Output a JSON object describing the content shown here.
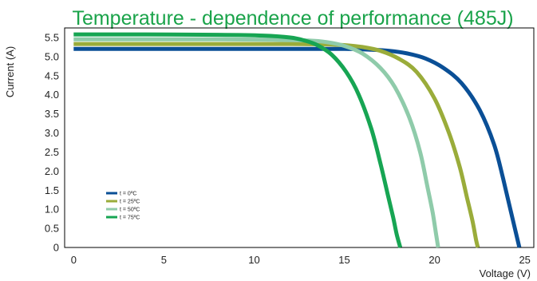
{
  "chart_data": {
    "type": "line",
    "title": "Temperature - dependence of performance (485J)",
    "xlabel": "Voltage (V)",
    "ylabel": "Current (A)",
    "xlim": [
      -0.5,
      25.5
    ],
    "ylim": [
      0,
      5.75
    ],
    "x_ticks": [
      0,
      5,
      10,
      15,
      20,
      25
    ],
    "x_tick_labels": [
      "0",
      "5",
      "10",
      "15",
      "20",
      "25"
    ],
    "y_ticks": [
      0,
      0.5,
      1.0,
      1.5,
      2.0,
      2.5,
      3.0,
      3.5,
      4.0,
      4.5,
      5.0,
      5.5
    ],
    "y_tick_labels": [
      "0",
      "0.5",
      "1.0",
      "1.5",
      "2.0",
      "2.5",
      "3.0",
      "3.5",
      "4.0",
      "4.5",
      "5.0",
      "5.5"
    ],
    "grid": false,
    "legend_position": "bottom-left",
    "series": [
      {
        "name": "t = 0ºC",
        "color": "#0a4f96",
        "x": [
          0,
          4,
          8,
          12,
          15,
          16.5,
          17.5,
          18.5,
          19.5,
          20.5,
          21.5,
          22.5,
          23.3,
          23.8,
          24.2,
          24.5,
          24.7
        ],
        "y": [
          5.2,
          5.2,
          5.2,
          5.2,
          5.2,
          5.18,
          5.15,
          5.08,
          4.95,
          4.7,
          4.3,
          3.6,
          2.7,
          1.8,
          1.0,
          0.4,
          0
        ]
      },
      {
        "name": "t = 25ºC",
        "color": "#9aac3a",
        "x": [
          0,
          4,
          8,
          12,
          14,
          15,
          16,
          17,
          18,
          19,
          20,
          20.8,
          21.4,
          21.8,
          22.1,
          22.3,
          22.4
        ],
        "y": [
          5.33,
          5.33,
          5.33,
          5.33,
          5.32,
          5.3,
          5.25,
          5.15,
          4.95,
          4.6,
          3.9,
          3.0,
          2.1,
          1.3,
          0.7,
          0.2,
          0
        ]
      },
      {
        "name": "t = 50ºC",
        "color": "#8fcbaa",
        "x": [
          0,
          4,
          8,
          11,
          13,
          14,
          15,
          16,
          17,
          17.8,
          18.6,
          19.2,
          19.6,
          19.9,
          20.1,
          20.2
        ],
        "y": [
          5.45,
          5.45,
          5.45,
          5.44,
          5.42,
          5.38,
          5.28,
          5.08,
          4.7,
          4.2,
          3.4,
          2.5,
          1.6,
          0.9,
          0.3,
          0
        ]
      },
      {
        "name": "t = 75ºC",
        "color": "#17a553",
        "x": [
          0,
          4,
          8,
          10.5,
          12,
          12.8,
          13.5,
          14.3,
          15.1,
          15.8,
          16.5,
          17,
          17.4,
          17.7,
          17.9,
          18.1
        ],
        "y": [
          5.58,
          5.58,
          5.57,
          5.55,
          5.5,
          5.42,
          5.3,
          5.05,
          4.6,
          4.0,
          3.1,
          2.2,
          1.4,
          0.8,
          0.35,
          0
        ]
      }
    ]
  }
}
